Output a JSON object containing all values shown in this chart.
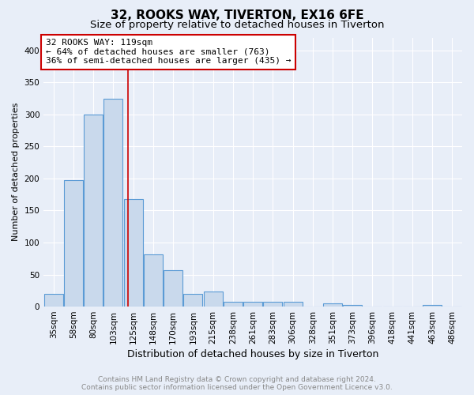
{
  "title": "32, ROOKS WAY, TIVERTON, EX16 6FE",
  "subtitle": "Size of property relative to detached houses in Tiverton",
  "xlabel": "Distribution of detached houses by size in Tiverton",
  "ylabel": "Number of detached properties",
  "categories": [
    "35sqm",
    "58sqm",
    "80sqm",
    "103sqm",
    "125sqm",
    "148sqm",
    "170sqm",
    "193sqm",
    "215sqm",
    "238sqm",
    "261sqm",
    "283sqm",
    "306sqm",
    "328sqm",
    "351sqm",
    "373sqm",
    "396sqm",
    "418sqm",
    "441sqm",
    "463sqm",
    "486sqm"
  ],
  "values": [
    20,
    197,
    300,
    325,
    168,
    82,
    57,
    20,
    23,
    7,
    7,
    7,
    7,
    0,
    5,
    3,
    0,
    0,
    0,
    3,
    0
  ],
  "bar_color": "#c9d9ec",
  "bar_edge_color": "#5b9bd5",
  "bar_linewidth": 0.8,
  "vline_color": "#cc0000",
  "vline_linewidth": 1.2,
  "vline_x": 3.72,
  "annotation_text": "32 ROOKS WAY: 119sqm\n← 64% of detached houses are smaller (763)\n36% of semi-detached houses are larger (435) →",
  "annotation_box_color": "#ffffff",
  "annotation_box_edge": "#cc0000",
  "ylim": [
    0,
    420
  ],
  "yticks": [
    0,
    50,
    100,
    150,
    200,
    250,
    300,
    350,
    400
  ],
  "background_color": "#e8eef8",
  "grid_color": "#ffffff",
  "footer_text": "Contains HM Land Registry data © Crown copyright and database right 2024.\nContains public sector information licensed under the Open Government Licence v3.0.",
  "title_fontsize": 11,
  "subtitle_fontsize": 9.5,
  "xlabel_fontsize": 9,
  "ylabel_fontsize": 8,
  "tick_fontsize": 7.5,
  "annotation_fontsize": 8,
  "footer_fontsize": 6.5
}
